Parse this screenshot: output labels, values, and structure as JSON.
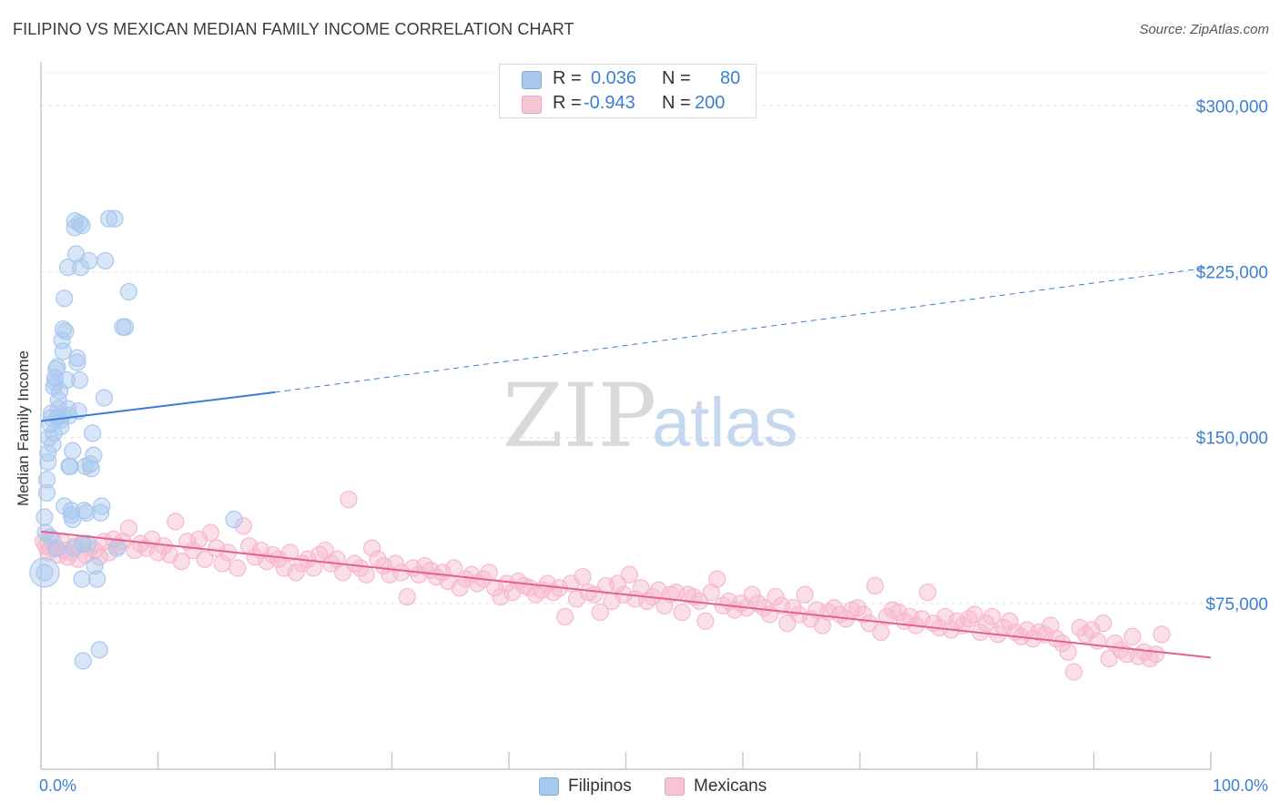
{
  "header": {
    "title": "FILIPINO VS MEXICAN MEDIAN FAMILY INCOME CORRELATION CHART",
    "source": "Source: ZipAtlas.com"
  },
  "watermark": {
    "zip": "ZIP",
    "atlas": "atlas"
  },
  "legend": {
    "rows": [
      {
        "r_label": "R =",
        "r_value": "0.036",
        "n_label": "N =",
        "n_value": "80",
        "color": "#a9c8ee"
      },
      {
        "r_label": "R =",
        "r_value": "-0.943",
        "n_label": "N =",
        "n_value": "200",
        "color": "#f6b9cc"
      }
    ]
  },
  "bottom_legend": [
    {
      "label": "Filipinos",
      "color": "#a9c8ee"
    },
    {
      "label": "Mexicans",
      "color": "#f6b9cc"
    }
  ],
  "chart_data": {
    "type": "scatter",
    "title": "FILIPINO VS MEXICAN MEDIAN FAMILY INCOME CORRELATION CHART",
    "ylabel": "Median Family Income",
    "xlabel": "",
    "xlim": [
      0,
      100
    ],
    "ylim": [
      0,
      315000
    ],
    "x_tick_labels": [
      "0.0%",
      "100.0%"
    ],
    "y_ticks": [
      {
        "value": 75000,
        "label": "$75,000"
      },
      {
        "value": 150000,
        "label": "$150,000"
      },
      {
        "value": 225000,
        "label": "$225,000"
      },
      {
        "value": 300000,
        "label": "$300,000"
      }
    ],
    "grid": "horizontal dashed",
    "series": [
      {
        "name": "Filipinos",
        "color": "#3a7bd5",
        "fill": "#a9c8ee",
        "r": 0.036,
        "n": 80,
        "trend": {
          "x0": 0,
          "y0": 157500,
          "x1": 20,
          "y1": 170500,
          "dashed_to_x": 100,
          "dashed_to_y": 227000
        },
        "points": [
          [
            0.3,
            114000
          ],
          [
            0.4,
            107000
          ],
          [
            0.3,
            89000
          ],
          [
            0.5,
            131000
          ],
          [
            0.5,
            125000
          ],
          [
            0.6,
            139000
          ],
          [
            0.6,
            143000
          ],
          [
            0.7,
            150000
          ],
          [
            0.8,
            156000
          ],
          [
            0.9,
            159000
          ],
          [
            0.9,
            161000
          ],
          [
            1.0,
            147000
          ],
          [
            1.1,
            152000
          ],
          [
            1.1,
            173000
          ],
          [
            1.2,
            175000
          ],
          [
            1.2,
            177000
          ],
          [
            1.3,
            181000
          ],
          [
            1.4,
            182000
          ],
          [
            1.4,
            159000
          ],
          [
            1.5,
            163000
          ],
          [
            1.5,
            167000
          ],
          [
            1.6,
            171000
          ],
          [
            1.7,
            158000
          ],
          [
            1.7,
            155000
          ],
          [
            1.8,
            160000
          ],
          [
            1.8,
            194000
          ],
          [
            1.9,
            199000
          ],
          [
            1.9,
            189000
          ],
          [
            2.0,
            213000
          ],
          [
            2.0,
            119000
          ],
          [
            2.1,
            198000
          ],
          [
            2.2,
            176000
          ],
          [
            2.3,
            163000
          ],
          [
            2.3,
            227000
          ],
          [
            2.4,
            160000
          ],
          [
            2.4,
            137000
          ],
          [
            2.5,
            137000
          ],
          [
            2.6,
            117000
          ],
          [
            2.6,
            115000
          ],
          [
            2.7,
            113000
          ],
          [
            2.7,
            144000
          ],
          [
            2.9,
            245000
          ],
          [
            2.9,
            248000
          ],
          [
            3.0,
            233000
          ],
          [
            3.1,
            186000
          ],
          [
            3.1,
            184000
          ],
          [
            3.2,
            162000
          ],
          [
            3.3,
            247000
          ],
          [
            3.3,
            176000
          ],
          [
            3.4,
            227000
          ],
          [
            3.5,
            246000
          ],
          [
            3.5,
            86000
          ],
          [
            3.6,
            49000
          ],
          [
            3.7,
            117000
          ],
          [
            3.8,
            137000
          ],
          [
            3.9,
            116000
          ],
          [
            4.0,
            102000
          ],
          [
            4.1,
            230000
          ],
          [
            4.2,
            138000
          ],
          [
            4.3,
            136000
          ],
          [
            4.4,
            152000
          ],
          [
            4.5,
            142000
          ],
          [
            4.6,
            92000
          ],
          [
            4.8,
            86000
          ],
          [
            5.0,
            54000
          ],
          [
            5.1,
            116000
          ],
          [
            5.2,
            119000
          ],
          [
            5.4,
            168000
          ],
          [
            5.5,
            230000
          ],
          [
            5.8,
            249000
          ],
          [
            6.3,
            249000
          ],
          [
            6.5,
            100000
          ],
          [
            7.0,
            200000
          ],
          [
            7.2,
            200000
          ],
          [
            7.5,
            216000
          ],
          [
            16.5,
            113000
          ],
          [
            0.8,
            105000
          ],
          [
            1.3,
            100000
          ],
          [
            2.8,
            100000
          ],
          [
            3.6,
            102000
          ]
        ]
      },
      {
        "name": "Mexicans",
        "color": "#e3608f",
        "fill": "#f6b9cc",
        "r": -0.943,
        "n": 200,
        "trend": {
          "x0": 0,
          "y0": 107500,
          "x1": 100,
          "y1": 50500
        },
        "points": [
          [
            0.2,
            103000
          ],
          [
            0.4,
            101000
          ],
          [
            0.6,
            98000
          ],
          [
            0.8,
            100000
          ],
          [
            1.0,
            104000
          ],
          [
            1.2,
            100000
          ],
          [
            1.5,
            97000
          ],
          [
            1.8,
            103000
          ],
          [
            2.0,
            99000
          ],
          [
            2.3,
            96000
          ],
          [
            2.6,
            98000
          ],
          [
            2.9,
            101000
          ],
          [
            3.2,
            95000
          ],
          [
            3.5,
            102000
          ],
          [
            3.8,
            97000
          ],
          [
            4.2,
            100000
          ],
          [
            4.6,
            99000
          ],
          [
            5.0,
            96000
          ],
          [
            5.4,
            103000
          ],
          [
            5.8,
            98000
          ],
          [
            6.2,
            104000
          ],
          [
            6.6,
            101000
          ],
          [
            7.0,
            103000
          ],
          [
            7.5,
            109000
          ],
          [
            8.0,
            99000
          ],
          [
            8.5,
            102000
          ],
          [
            9.0,
            100000
          ],
          [
            9.5,
            104000
          ],
          [
            10.0,
            98000
          ],
          [
            10.5,
            101000
          ],
          [
            11.0,
            97000
          ],
          [
            11.5,
            112000
          ],
          [
            12.0,
            94000
          ],
          [
            12.5,
            103000
          ],
          [
            13.0,
            99000
          ],
          [
            13.5,
            104000
          ],
          [
            14.0,
            95000
          ],
          [
            14.5,
            107000
          ],
          [
            15.0,
            100000
          ],
          [
            15.5,
            93000
          ],
          [
            16.0,
            98000
          ],
          [
            16.8,
            91000
          ],
          [
            17.3,
            110000
          ],
          [
            17.8,
            101000
          ],
          [
            18.3,
            96000
          ],
          [
            18.8,
            99000
          ],
          [
            19.3,
            94000
          ],
          [
            19.8,
            97000
          ],
          [
            20.3,
            95000
          ],
          [
            20.8,
            91000
          ],
          [
            21.3,
            98000
          ],
          [
            21.8,
            89000
          ],
          [
            22.3,
            93000
          ],
          [
            22.8,
            95000
          ],
          [
            23.3,
            91000
          ],
          [
            23.8,
            97000
          ],
          [
            24.3,
            99000
          ],
          [
            24.8,
            93000
          ],
          [
            25.3,
            95000
          ],
          [
            25.8,
            89000
          ],
          [
            26.3,
            122000
          ],
          [
            26.8,
            93000
          ],
          [
            27.3,
            91000
          ],
          [
            27.8,
            88000
          ],
          [
            28.3,
            100000
          ],
          [
            28.8,
            95000
          ],
          [
            29.3,
            92000
          ],
          [
            29.8,
            88000
          ],
          [
            30.3,
            93000
          ],
          [
            30.8,
            89000
          ],
          [
            31.3,
            78000
          ],
          [
            31.8,
            91000
          ],
          [
            32.3,
            88000
          ],
          [
            32.8,
            92000
          ],
          [
            33.3,
            90000
          ],
          [
            33.8,
            87000
          ],
          [
            34.3,
            89000
          ],
          [
            34.8,
            85000
          ],
          [
            35.3,
            91000
          ],
          [
            35.8,
            82000
          ],
          [
            36.3,
            86000
          ],
          [
            36.8,
            88000
          ],
          [
            37.3,
            84000
          ],
          [
            37.8,
            86000
          ],
          [
            38.3,
            89000
          ],
          [
            38.8,
            82000
          ],
          [
            39.3,
            78000
          ],
          [
            39.8,
            84000
          ],
          [
            40.3,
            80000
          ],
          [
            40.8,
            85000
          ],
          [
            41.3,
            83000
          ],
          [
            41.8,
            82000
          ],
          [
            42.3,
            79000
          ],
          [
            42.8,
            81000
          ],
          [
            43.3,
            84000
          ],
          [
            43.8,
            80000
          ],
          [
            44.3,
            82000
          ],
          [
            44.8,
            69000
          ],
          [
            45.3,
            84000
          ],
          [
            45.8,
            77000
          ],
          [
            46.3,
            87000
          ],
          [
            46.8,
            80000
          ],
          [
            47.3,
            79000
          ],
          [
            47.8,
            71000
          ],
          [
            48.3,
            83000
          ],
          [
            48.8,
            76000
          ],
          [
            49.3,
            84000
          ],
          [
            49.8,
            79000
          ],
          [
            50.3,
            88000
          ],
          [
            50.8,
            77000
          ],
          [
            51.3,
            82000
          ],
          [
            51.8,
            76000
          ],
          [
            52.3,
            78000
          ],
          [
            52.8,
            81000
          ],
          [
            53.3,
            74000
          ],
          [
            53.8,
            79000
          ],
          [
            54.3,
            80000
          ],
          [
            54.8,
            71000
          ],
          [
            55.3,
            79000
          ],
          [
            55.8,
            78000
          ],
          [
            56.3,
            76000
          ],
          [
            56.8,
            67000
          ],
          [
            57.3,
            80000
          ],
          [
            57.8,
            86000
          ],
          [
            58.3,
            74000
          ],
          [
            58.8,
            76000
          ],
          [
            59.3,
            72000
          ],
          [
            59.8,
            75000
          ],
          [
            60.3,
            73000
          ],
          [
            60.8,
            79000
          ],
          [
            61.3,
            75000
          ],
          [
            61.8,
            73000
          ],
          [
            62.3,
            70000
          ],
          [
            62.8,
            78000
          ],
          [
            63.3,
            74000
          ],
          [
            63.8,
            66000
          ],
          [
            64.3,
            73000
          ],
          [
            64.8,
            70000
          ],
          [
            65.3,
            79000
          ],
          [
            65.8,
            68000
          ],
          [
            66.3,
            72000
          ],
          [
            66.8,
            65000
          ],
          [
            67.3,
            71000
          ],
          [
            67.8,
            73000
          ],
          [
            68.3,
            70000
          ],
          [
            68.8,
            68000
          ],
          [
            69.3,
            72000
          ],
          [
            69.8,
            73000
          ],
          [
            70.3,
            70000
          ],
          [
            70.8,
            66000
          ],
          [
            71.3,
            83000
          ],
          [
            71.8,
            62000
          ],
          [
            72.3,
            69000
          ],
          [
            72.8,
            72000
          ],
          [
            73.3,
            71000
          ],
          [
            73.8,
            67000
          ],
          [
            74.3,
            69000
          ],
          [
            74.8,
            65000
          ],
          [
            75.3,
            68000
          ],
          [
            75.8,
            80000
          ],
          [
            76.3,
            66000
          ],
          [
            76.8,
            64000
          ],
          [
            77.3,
            69000
          ],
          [
            77.8,
            63000
          ],
          [
            78.3,
            67000
          ],
          [
            78.8,
            65000
          ],
          [
            79.3,
            68000
          ],
          [
            79.8,
            70000
          ],
          [
            80.3,
            62000
          ],
          [
            80.8,
            66000
          ],
          [
            81.3,
            69000
          ],
          [
            81.8,
            61000
          ],
          [
            82.3,
            64000
          ],
          [
            82.8,
            67000
          ],
          [
            83.3,
            62000
          ],
          [
            83.8,
            60000
          ],
          [
            84.3,
            63000
          ],
          [
            84.8,
            59000
          ],
          [
            85.3,
            62000
          ],
          [
            85.8,
            61000
          ],
          [
            86.3,
            65000
          ],
          [
            86.8,
            59000
          ],
          [
            87.3,
            57000
          ],
          [
            87.8,
            53000
          ],
          [
            88.3,
            44000
          ],
          [
            88.8,
            64000
          ],
          [
            89.3,
            61000
          ],
          [
            89.8,
            63000
          ],
          [
            90.3,
            58000
          ],
          [
            90.8,
            66000
          ],
          [
            91.3,
            50000
          ],
          [
            91.8,
            57000
          ],
          [
            92.3,
            54000
          ],
          [
            92.8,
            52000
          ],
          [
            93.3,
            60000
          ],
          [
            93.8,
            51000
          ],
          [
            94.3,
            53000
          ],
          [
            94.8,
            50000
          ],
          [
            95.3,
            52000
          ],
          [
            95.8,
            61000
          ]
        ]
      }
    ]
  }
}
